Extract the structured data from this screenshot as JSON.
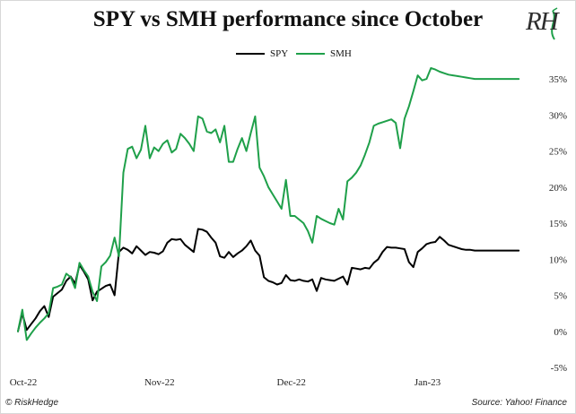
{
  "title": "SPY vs SMH performance since October",
  "logo": "RH",
  "legend": [
    {
      "label": "SPY",
      "color": "#000000"
    },
    {
      "label": "SMH",
      "color": "#1fa04a"
    }
  ],
  "footer": {
    "left": "© RiskHedge",
    "right": "Source: Yahoo! Finance"
  },
  "chart_data": {
    "type": "line",
    "ylim": [
      -5,
      37
    ],
    "yticks": [
      -5,
      0,
      5,
      10,
      15,
      20,
      25,
      30,
      35
    ],
    "ytick_labels": [
      "-5%",
      "0%",
      "5%",
      "10%",
      "15%",
      "20%",
      "25%",
      "30%",
      "35%"
    ],
    "xtick_labels": [
      "Oct-22",
      "Nov-22",
      "Dec-22",
      "Jan-23"
    ],
    "xtick_days": [
      0,
      31,
      61,
      92
    ],
    "grid": false,
    "legend_position": "top-center",
    "x": [
      0,
      1,
      2,
      3,
      4,
      5,
      6,
      7,
      8,
      9,
      10,
      11,
      12,
      13,
      14,
      15,
      16,
      17,
      18,
      19,
      20,
      21,
      22,
      23,
      24,
      25,
      26,
      27,
      28,
      29,
      30,
      31,
      32,
      33,
      34,
      35,
      36,
      37,
      38,
      39,
      40,
      41,
      42,
      43,
      44,
      45,
      46,
      47,
      48,
      49,
      50,
      51,
      52,
      53,
      54,
      55,
      56,
      57,
      58,
      59,
      60,
      61,
      62,
      63,
      64,
      65,
      66,
      67,
      68,
      69,
      70,
      71,
      72,
      73,
      74,
      75,
      76,
      77,
      78,
      79,
      80,
      81,
      82,
      83,
      84,
      85,
      86,
      87,
      88,
      89,
      90,
      91,
      92,
      93,
      94,
      95,
      96,
      97,
      98,
      99,
      100,
      101,
      102,
      103,
      104,
      105,
      106,
      107,
      108,
      109,
      110,
      111,
      112,
      113,
      114
    ],
    "series": [
      {
        "name": "SPY",
        "color": "#000000",
        "values": [
          0.0,
          2.5,
          0.2,
          1.0,
          1.8,
          2.8,
          3.5,
          2.0,
          4.8,
          5.3,
          5.8,
          7.0,
          7.6,
          6.6,
          9.2,
          8.3,
          7.2,
          4.3,
          5.5,
          5.9,
          6.3,
          6.5,
          5.0,
          11.0,
          11.6,
          11.3,
          10.8,
          11.8,
          11.2,
          10.6,
          11.0,
          10.9,
          10.7,
          11.1,
          12.3,
          12.8,
          12.7,
          12.8,
          12.0,
          11.5,
          11.0,
          14.2,
          14.1,
          13.8,
          13.0,
          12.3,
          10.4,
          10.2,
          11.0,
          10.3,
          10.8,
          11.2,
          11.8,
          12.6,
          11.2,
          10.5,
          7.5,
          7.0,
          6.8,
          6.5,
          6.7,
          7.8,
          7.1,
          7.0,
          7.2,
          7.0,
          6.9,
          7.2,
          5.6,
          7.4,
          7.2,
          7.1,
          7.0,
          7.3,
          7.6,
          6.5,
          8.8,
          8.7,
          8.6,
          8.8,
          8.7,
          9.5,
          10.0,
          11.0,
          11.7,
          11.6,
          11.6,
          11.5,
          11.4,
          9.6,
          8.9,
          11.0,
          11.5,
          12.1,
          12.3,
          12.4,
          13.1,
          12.6,
          12.0,
          11.8,
          11.6,
          11.4,
          11.3,
          11.3,
          11.2,
          11.2,
          11.2,
          11.2,
          11.2,
          11.2,
          11.2,
          11.2,
          11.2,
          11.2,
          11.2
        ]
      },
      {
        "name": "SMH",
        "color": "#1fa04a",
        "values": [
          0.0,
          3.0,
          -1.2,
          -0.3,
          0.5,
          1.2,
          1.8,
          2.5,
          6.0,
          6.2,
          6.5,
          8.0,
          7.5,
          6.0,
          9.5,
          8.5,
          7.6,
          5.5,
          4.2,
          9.0,
          9.6,
          10.5,
          13.0,
          10.4,
          22.0,
          25.3,
          25.6,
          24.0,
          25.2,
          28.5,
          24.0,
          25.5,
          25.0,
          26.0,
          26.5,
          24.8,
          25.3,
          27.4,
          26.8,
          26.0,
          25.0,
          29.8,
          29.5,
          27.7,
          27.5,
          28.0,
          26.2,
          28.5,
          23.5,
          23.5,
          25.3,
          26.8,
          25.0,
          27.5,
          29.8,
          22.7,
          21.5,
          20.0,
          19.0,
          18.0,
          17.0,
          21.0,
          16.0,
          16.0,
          15.5,
          15.0,
          13.9,
          12.3,
          16.0,
          15.6,
          15.3,
          15.0,
          14.8,
          17.0,
          15.5,
          20.8,
          21.3,
          22.0,
          23.0,
          24.5,
          26.2,
          28.5,
          28.8,
          29.0,
          29.2,
          29.4,
          28.9,
          25.4,
          29.5,
          31.2,
          33.3,
          35.5,
          34.8,
          35.0,
          36.5,
          36.3,
          36.0,
          35.8,
          35.6,
          35.5,
          35.4,
          35.3,
          35.2,
          35.1,
          35.0,
          35.0,
          35.0,
          35.0,
          35.0,
          35.0,
          35.0,
          35.0,
          35.0,
          35.0,
          35.0
        ]
      }
    ]
  }
}
